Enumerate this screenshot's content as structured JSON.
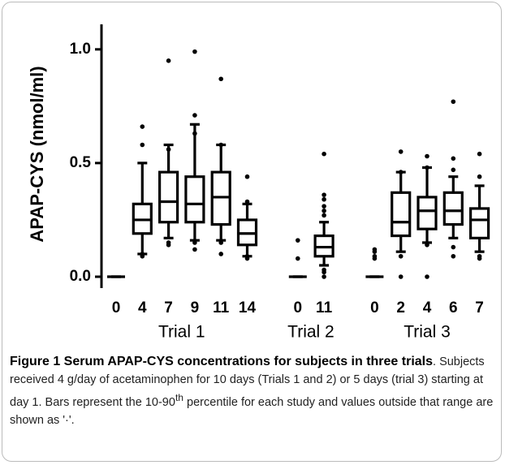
{
  "chart_data": {
    "type": "box",
    "ylabel": "APAP-CYS (nmol/ml)",
    "ylim": [
      -0.05,
      1.11
    ],
    "yticks": [
      {
        "value": 0,
        "label": "0.0"
      },
      {
        "value": 0.5,
        "label": "0.5"
      },
      {
        "value": 1,
        "label": "1.0"
      }
    ],
    "color": "#000000",
    "groups": [
      {
        "name": "Trial 1",
        "categories": [
          "0",
          "4",
          "7",
          "9",
          "11",
          "14"
        ],
        "boxes": [
          {
            "whislo": 0,
            "q1": 0,
            "med": 0,
            "q3": 0,
            "whishi": 0,
            "fliers": []
          },
          {
            "whislo": 0.1,
            "q1": 0.19,
            "med": 0.25,
            "q3": 0.32,
            "whishi": 0.5,
            "fliers": [
              0.66,
              0.58,
              0.09,
              0.1
            ]
          },
          {
            "whislo": 0.17,
            "q1": 0.24,
            "med": 0.33,
            "q3": 0.46,
            "whishi": 0.58,
            "fliers": [
              0.95,
              0.56,
              0.14,
              0.15
            ]
          },
          {
            "whislo": 0.16,
            "q1": 0.24,
            "med": 0.32,
            "q3": 0.44,
            "whishi": 0.67,
            "fliers": [
              0.99,
              0.71,
              0.63,
              0.12,
              0.15
            ]
          },
          {
            "whislo": 0.16,
            "q1": 0.23,
            "med": 0.35,
            "q3": 0.46,
            "whishi": 0.58,
            "fliers": [
              0.87,
              0.58,
              0.15,
              0.1
            ]
          },
          {
            "whislo": 0.09,
            "q1": 0.14,
            "med": 0.19,
            "q3": 0.25,
            "whishi": 0.32,
            "fliers": [
              0.44,
              0.33,
              0.08,
              0.09
            ]
          }
        ]
      },
      {
        "name": "Trial 2",
        "categories": [
          "0",
          "11"
        ],
        "boxes": [
          {
            "whislo": 0,
            "q1": 0,
            "med": 0,
            "q3": 0,
            "whishi": 0,
            "fliers": [
              0.16,
              0.08
            ]
          },
          {
            "whislo": 0.05,
            "q1": 0.09,
            "med": 0.13,
            "q3": 0.18,
            "whishi": 0.24,
            "fliers": [
              0.54,
              0.36,
              0.34,
              0.31,
              0.29,
              0.27,
              0.02,
              0,
              0.03
            ]
          }
        ]
      },
      {
        "name": "Trial 3",
        "categories": [
          "0",
          "2",
          "4",
          "6",
          "7"
        ],
        "boxes": [
          {
            "whislo": 0,
            "q1": 0,
            "med": 0,
            "q3": 0,
            "whishi": 0,
            "fliers": [
              0.12,
              0.11,
              0.08,
              0.09
            ]
          },
          {
            "whislo": 0.11,
            "q1": 0.18,
            "med": 0.24,
            "q3": 0.37,
            "whishi": 0.46,
            "fliers": [
              0.55,
              0.46,
              0.09,
              0
            ]
          },
          {
            "whislo": 0.15,
            "q1": 0.21,
            "med": 0.29,
            "q3": 0.35,
            "whishi": 0.48,
            "fliers": [
              0.53,
              0.48,
              0,
              0.14
            ]
          },
          {
            "whislo": 0.17,
            "q1": 0.23,
            "med": 0.29,
            "q3": 0.37,
            "whishi": 0.44,
            "fliers": [
              0.77,
              0.52,
              0.47,
              0.09,
              0.13
            ]
          },
          {
            "whislo": 0.11,
            "q1": 0.17,
            "med": 0.25,
            "q3": 0.3,
            "whishi": 0.4,
            "fliers": [
              0.54,
              0.44,
              0.09,
              0.08
            ]
          }
        ]
      }
    ]
  },
  "caption": {
    "title": "Figure 1 Serum APAP-CYS concentrations for subjects in three trials",
    "text": ". Subjects received 4 g/day of acetaminophen for 10 days (Trials 1 and 2) or 5 days (trial 3) starting at day 1. Bars represent the 10-90",
    "sup": "th",
    "text_end": " percentile for each study and values outside that range are shown as '·'."
  }
}
